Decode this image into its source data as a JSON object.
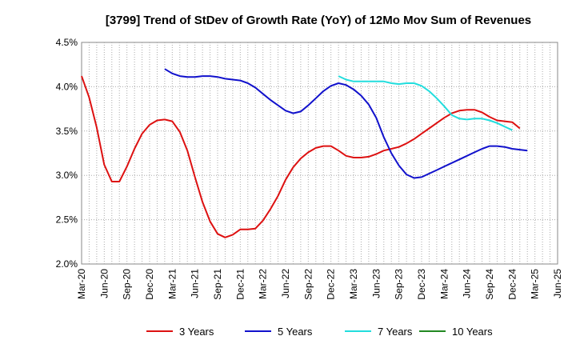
{
  "chart_data": {
    "type": "line",
    "title": "[3799]  Trend of StDev of Growth Rate (YoY) of 12Mo Mov Sum of Revenues",
    "xlabel": "",
    "ylabel": "",
    "ylim": [
      2.0,
      4.5
    ],
    "y_ticks": [
      2.0,
      2.5,
      3.0,
      3.5,
      4.0,
      4.5
    ],
    "y_tick_labels": [
      "2.0%",
      "2.5%",
      "3.0%",
      "3.5%",
      "4.0%",
      "4.5%"
    ],
    "x_ticks": [
      "Mar-20",
      "Jun-20",
      "Sep-20",
      "Dec-20",
      "Mar-21",
      "Jun-21",
      "Sep-21",
      "Dec-21",
      "Mar-22",
      "Jun-22",
      "Sep-22",
      "Dec-22",
      "Mar-23",
      "Jun-23",
      "Sep-23",
      "Dec-23",
      "Mar-24",
      "Jun-24",
      "Sep-24",
      "Dec-24",
      "Mar-25",
      "Jun-25"
    ],
    "grid": "vertical-monthly-dotted",
    "legend_position": "bottom",
    "series": [
      {
        "name": "3 Years",
        "color": "#dd1111",
        "start": "Mar-20",
        "values": [
          4.12,
          3.88,
          3.54,
          3.12,
          2.93,
          2.93,
          3.1,
          3.3,
          3.47,
          3.57,
          3.62,
          3.63,
          3.61,
          3.49,
          3.28,
          2.98,
          2.7,
          2.48,
          2.34,
          2.3,
          2.33,
          2.39,
          2.39,
          2.4,
          2.49,
          2.62,
          2.77,
          2.95,
          3.09,
          3.19,
          3.26,
          3.31,
          3.33,
          3.33,
          3.28,
          3.22,
          3.2,
          3.2,
          3.21,
          3.24,
          3.28,
          3.3,
          3.32,
          3.36,
          3.41,
          3.47,
          3.53,
          3.59,
          3.65,
          3.7,
          3.73,
          3.74,
          3.74,
          3.71,
          3.66,
          3.62,
          3.61,
          3.6,
          3.53
        ]
      },
      {
        "name": "5 Years",
        "color": "#1111cc",
        "start": "Mar-20",
        "values": [
          null,
          null,
          null,
          null,
          null,
          null,
          null,
          null,
          null,
          null,
          null,
          4.2,
          4.15,
          4.12,
          4.11,
          4.11,
          4.12,
          4.12,
          4.11,
          4.09,
          4.08,
          4.07,
          4.04,
          3.99,
          3.92,
          3.85,
          3.79,
          3.73,
          3.7,
          3.72,
          3.79,
          3.87,
          3.95,
          4.01,
          4.04,
          4.02,
          3.97,
          3.9,
          3.8,
          3.65,
          3.43,
          3.25,
          3.11,
          3.01,
          2.97,
          2.98,
          3.02,
          3.06,
          3.1,
          3.14,
          3.18,
          3.22,
          3.26,
          3.3,
          3.33,
          3.33,
          3.32,
          3.3,
          3.29,
          3.28
        ]
      },
      {
        "name": "7 Years",
        "color": "#22dddd",
        "start": "Mar-20",
        "values": [
          null,
          null,
          null,
          null,
          null,
          null,
          null,
          null,
          null,
          null,
          null,
          null,
          null,
          null,
          null,
          null,
          null,
          null,
          null,
          null,
          null,
          null,
          null,
          null,
          null,
          null,
          null,
          null,
          null,
          null,
          null,
          null,
          null,
          null,
          4.12,
          4.08,
          4.06,
          4.06,
          4.06,
          4.06,
          4.06,
          4.04,
          4.03,
          4.04,
          4.04,
          4.01,
          3.95,
          3.87,
          3.78,
          3.68,
          3.64,
          3.63,
          3.64,
          3.64,
          3.62,
          3.59,
          3.55,
          3.51
        ]
      },
      {
        "name": "10 Years",
        "color": "#228822",
        "start": "Mar-20",
        "values": []
      }
    ]
  }
}
